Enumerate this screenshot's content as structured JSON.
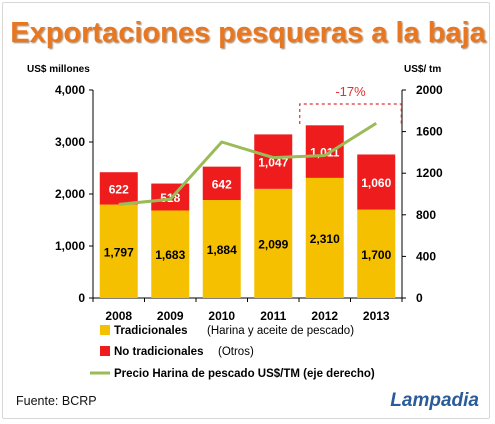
{
  "chart_data": {
    "type": "bar",
    "title": "Exportaciones pesqueras a la baja",
    "categories": [
      "2008",
      "2009",
      "2010",
      "2011",
      "2012",
      "2013"
    ],
    "y_left_label": "US$ millones",
    "y_right_label": "US$/ tm",
    "y_left_ticks": [
      "0",
      "1,000",
      "2,000",
      "3,000",
      "4,000"
    ],
    "y_right_ticks": [
      "0",
      "400",
      "800",
      "1200",
      "1600",
      "2000"
    ],
    "y_left_range": [
      0,
      4000
    ],
    "y_right_range": [
      0,
      2000
    ],
    "series": [
      {
        "name": "Tradicionales",
        "name_note": "(Harina y aceite de pescado)",
        "kind": "stacked-bar",
        "color": "#F5C000",
        "values": [
          1797,
          1683,
          1884,
          2099,
          2310,
          1700
        ],
        "labels": [
          "1,797",
          "1,683",
          "1,884",
          "2,099",
          "2,310",
          "1,700"
        ]
      },
      {
        "name": "No tradicionales",
        "name_note": "(Otros)",
        "kind": "stacked-bar",
        "color": "#EE1C1C",
        "values": [
          622,
          518,
          642,
          1047,
          1011,
          1060
        ],
        "labels": [
          "622",
          "518",
          "642",
          "1,047",
          "1,011",
          "1,060"
        ]
      },
      {
        "name": "Precio Harina de pescado US$/TM (eje derecho)",
        "kind": "line",
        "axis": "right",
        "color": "#9BBB59",
        "values": [
          900,
          950,
          1500,
          1350,
          1370,
          1680
        ]
      }
    ],
    "annotation": "-17%",
    "annotation_color": "#E03030",
    "grid": false,
    "legend_position": "bottom"
  },
  "footer": {
    "source": "Fuente: BCRP",
    "brand": "Lampadia"
  },
  "colors": {
    "title": "#E87722",
    "brand": "#2B5C9A"
  }
}
